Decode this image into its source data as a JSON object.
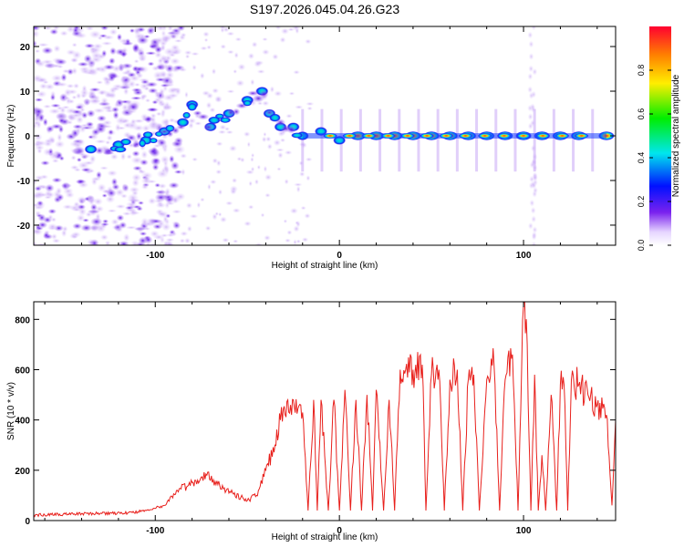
{
  "figure": {
    "title": "S197.2026.045.04.26.G23"
  },
  "chart_data": [
    {
      "type": "heatmap",
      "title": "S197.2026.045.04.26.G23",
      "xlabel": "Height of straight line (km)",
      "ylabel": "Frequency (Hz)",
      "xlim": [
        -166,
        150
      ],
      "ylim": [
        -24.5,
        24.5
      ],
      "x_ticks": [
        -100,
        0,
        100
      ],
      "y_ticks": [
        -20,
        -10,
        0,
        10,
        20
      ],
      "colorbar": {
        "label": "Normalized spectral amplitude",
        "range": [
          0,
          1
        ],
        "ticks": [
          0.0,
          0.2,
          0.4,
          0.6,
          0.8
        ]
      },
      "ridge": [
        [
          -135,
          -3
        ],
        [
          -120,
          -2
        ],
        [
          -105,
          -1
        ],
        [
          -95,
          1
        ],
        [
          -85,
          3
        ],
        [
          -80,
          7
        ],
        [
          -70,
          2
        ],
        [
          -60,
          5
        ],
        [
          -50,
          8
        ],
        [
          -42,
          10
        ],
        [
          -38,
          5
        ],
        [
          -32,
          2
        ],
        [
          -25,
          2
        ],
        [
          -20,
          0
        ],
        [
          -10,
          1
        ],
        [
          0,
          -1
        ],
        [
          10,
          0
        ],
        [
          20,
          0
        ],
        [
          30,
          0
        ],
        [
          40,
          0
        ],
        [
          50,
          0
        ],
        [
          60,
          0
        ],
        [
          70,
          0
        ],
        [
          80,
          0
        ],
        [
          90,
          0
        ],
        [
          100,
          0
        ],
        [
          110,
          0
        ],
        [
          120,
          0
        ],
        [
          130,
          0
        ],
        [
          145,
          0
        ]
      ]
    },
    {
      "type": "line",
      "xlabel": "Height of straight line (km)",
      "ylabel": "SNR (10 * v/v)",
      "xlim": [
        -166,
        150
      ],
      "ylim": [
        0,
        870
      ],
      "x_ticks": [
        -100,
        0,
        100
      ],
      "y_ticks": [
        0,
        200,
        400,
        600,
        800
      ],
      "color": "#e8201c",
      "x": [
        -166,
        -150,
        -130,
        -115,
        -105,
        -95,
        -88,
        -82,
        -78,
        -72,
        -65,
        -58,
        -50,
        -45,
        -40,
        -35,
        -32,
        -28,
        -26,
        -25,
        -20,
        -17,
        -14,
        -12,
        -10,
        -6,
        -3,
        0,
        3,
        6,
        9,
        12,
        15,
        18,
        20,
        24,
        27,
        30,
        33,
        36,
        40,
        45,
        47,
        50,
        54,
        57,
        60,
        64,
        67,
        70,
        73,
        76,
        80,
        84,
        87,
        90,
        94,
        97,
        100,
        102,
        104,
        106,
        108,
        110,
        112,
        115,
        118,
        120,
        122,
        124,
        126,
        130,
        135,
        140,
        145,
        148,
        150
      ],
      "values": [
        22,
        25,
        28,
        30,
        40,
        60,
        120,
        140,
        160,
        180,
        140,
        110,
        80,
        100,
        200,
        300,
        400,
        480,
        420,
        480,
        430,
        40,
        480,
        40,
        480,
        40,
        480,
        40,
        520,
        40,
        480,
        40,
        500,
        40,
        520,
        40,
        480,
        40,
        600,
        600,
        600,
        620,
        40,
        580,
        600,
        40,
        560,
        600,
        40,
        560,
        580,
        40,
        560,
        620,
        40,
        560,
        660,
        40,
        860,
        700,
        40,
        580,
        40,
        260,
        40,
        500,
        40,
        540,
        540,
        40,
        560,
        540,
        500,
        460,
        420,
        60,
        400
      ]
    }
  ]
}
